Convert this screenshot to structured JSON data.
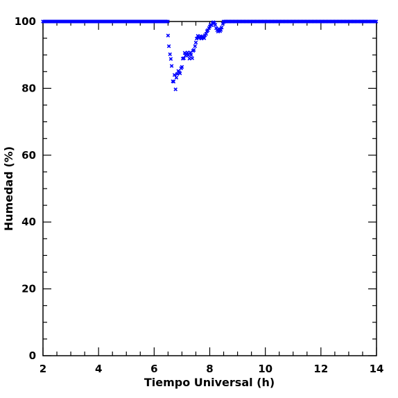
{
  "chart_data": {
    "type": "scatter",
    "title": "",
    "xlabel": "Tiempo Universal (h)",
    "ylabel": "Humedad (%)",
    "xlim": [
      2,
      14
    ],
    "ylim": [
      0,
      100
    ],
    "x_ticks": [
      "2",
      "4",
      "6",
      "8",
      "10",
      "12",
      "14"
    ],
    "y_ticks": [
      "0",
      "20",
      "40",
      "60",
      "80",
      "100"
    ],
    "grid": false,
    "marker": "x",
    "marker_color": "#0000ff",
    "saturated_segments": [
      {
        "x_start": 2.0,
        "x_end": 6.5,
        "y": 100
      },
      {
        "x_start": 8.5,
        "x_end": 14.0,
        "y": 100
      }
    ],
    "points": [
      [
        6.5,
        95.8
      ],
      [
        6.53,
        92.6
      ],
      [
        6.57,
        90.2
      ],
      [
        6.6,
        88.8
      ],
      [
        6.63,
        86.7
      ],
      [
        6.67,
        82.1
      ],
      [
        6.7,
        82.0
      ],
      [
        6.73,
        84.0
      ],
      [
        6.77,
        79.7
      ],
      [
        6.8,
        83.2
      ],
      [
        6.83,
        84.3
      ],
      [
        6.87,
        85.2
      ],
      [
        6.9,
        84.8
      ],
      [
        6.93,
        84.5
      ],
      [
        6.97,
        86.0
      ],
      [
        7.0,
        86.4
      ],
      [
        7.03,
        88.9
      ],
      [
        7.07,
        89.0
      ],
      [
        7.1,
        90.6
      ],
      [
        7.13,
        89.8
      ],
      [
        7.17,
        90.2
      ],
      [
        7.2,
        90.7
      ],
      [
        7.23,
        89.9
      ],
      [
        7.27,
        88.9
      ],
      [
        7.3,
        90.7
      ],
      [
        7.33,
        90.0
      ],
      [
        7.37,
        89.0
      ],
      [
        7.4,
        91.2
      ],
      [
        7.43,
        91.5
      ],
      [
        7.47,
        92.6
      ],
      [
        7.5,
        93.7
      ],
      [
        7.53,
        94.9
      ],
      [
        7.57,
        95.7
      ],
      [
        7.6,
        95.1
      ],
      [
        7.63,
        95.3
      ],
      [
        7.67,
        95.6
      ],
      [
        7.7,
        94.9
      ],
      [
        7.73,
        95.5
      ],
      [
        7.77,
        95.2
      ],
      [
        7.8,
        95.0
      ],
      [
        7.83,
        95.9
      ],
      [
        7.87,
        96.3
      ],
      [
        7.9,
        97.1
      ],
      [
        7.93,
        97.4
      ],
      [
        7.97,
        98.0
      ],
      [
        8.0,
        98.5
      ],
      [
        8.03,
        99.0
      ],
      [
        8.07,
        98.9
      ],
      [
        8.1,
        99.5
      ],
      [
        8.13,
        99.8
      ],
      [
        8.17,
        99.6
      ],
      [
        8.2,
        99.0
      ],
      [
        8.23,
        98.0
      ],
      [
        8.27,
        97.4
      ],
      [
        8.3,
        97.0
      ],
      [
        8.33,
        97.8
      ],
      [
        8.37,
        97.1
      ],
      [
        8.4,
        97.5
      ],
      [
        8.43,
        98.2
      ],
      [
        8.47,
        99.3
      ],
      [
        8.5,
        99.8
      ]
    ]
  }
}
